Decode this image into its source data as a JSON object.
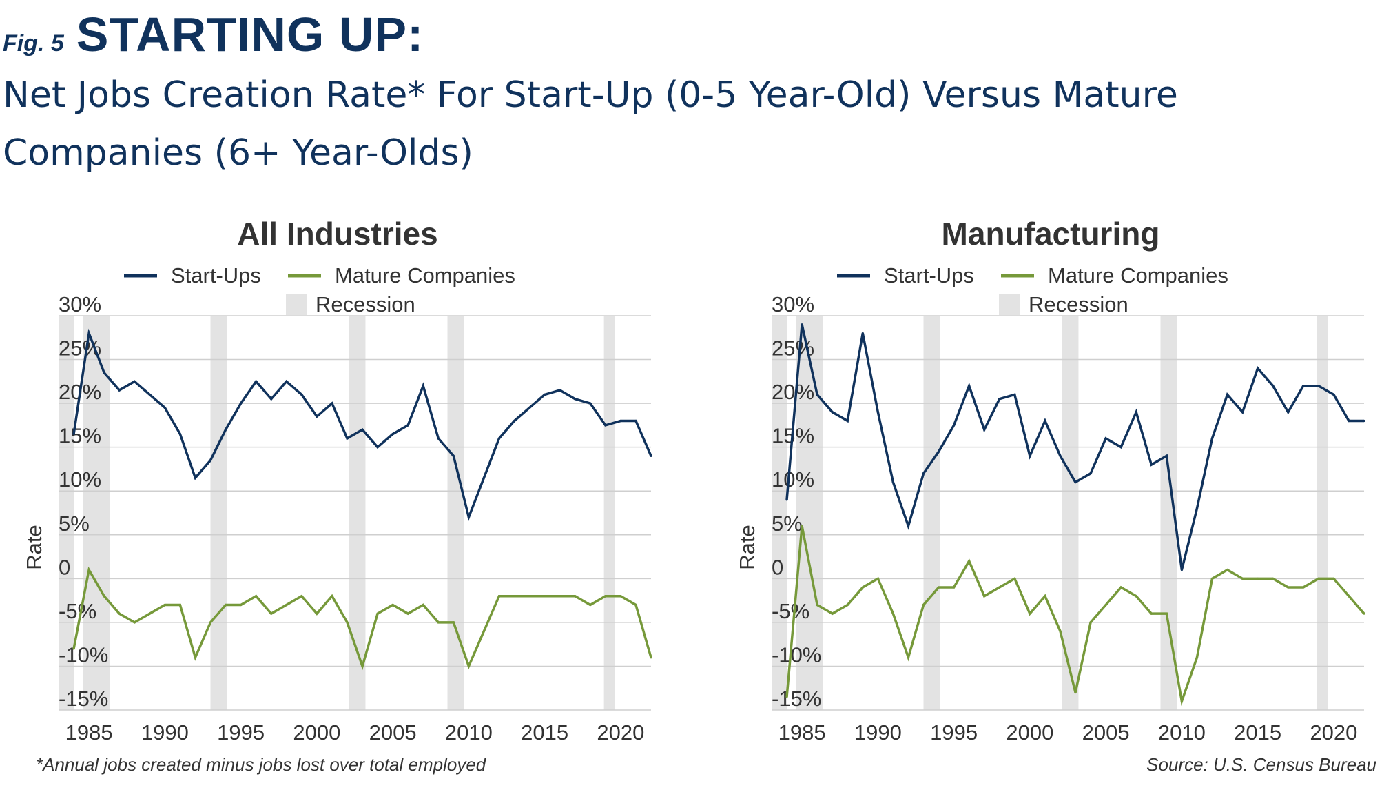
{
  "figure": {
    "label": "Fig. 5",
    "title": "STARTING UP:",
    "subtitle": "Net Jobs Creation Rate* For Start-Up (0-5 Year-Old) Versus Mature Companies (6+ Year-Olds)"
  },
  "footnote": "*Annual jobs created minus jobs lost over total employed",
  "source": "Source:  U.S. Census Bureau",
  "colors": {
    "startups": "#10325c",
    "mature": "#76993a",
    "recession": "#e3e3e3",
    "grid": "#cfcfcf",
    "text": "#333333"
  },
  "chart_data": [
    {
      "type": "line",
      "title": "All Industries",
      "ylabel": "Rate",
      "xlabel": "",
      "xlim": [
        1983,
        2022
      ],
      "ylim": [
        -15,
        30
      ],
      "yticks": [
        30,
        25,
        20,
        15,
        10,
        5,
        0,
        -5,
        -10,
        -15
      ],
      "ytick_labels": [
        "30%",
        "25%",
        "20%",
        "15%",
        "10%",
        "5%",
        "0",
        "-5%",
        "-10%",
        "-15%"
      ],
      "xticks": [
        1985,
        1990,
        1995,
        2000,
        2005,
        2010,
        2015,
        2020
      ],
      "xtick_labels": [
        "1985",
        "1990",
        "1995",
        "2000",
        "2005",
        "2010",
        "2015",
        "2020"
      ],
      "grid": true,
      "legend_labels": [
        "Start-Ups",
        "Mature Companies",
        "Recession"
      ],
      "recessions": [
        [
          1983,
          1984
        ],
        [
          1984.6,
          1986.4
        ],
        [
          1993,
          1994.1
        ],
        [
          2002.1,
          2003.2
        ],
        [
          2008.6,
          2009.7
        ],
        [
          2018.9,
          2019.6
        ]
      ],
      "x": [
        1984,
        1985,
        1986,
        1987,
        1988,
        1989,
        1990,
        1991,
        1992,
        1993,
        1994,
        1995,
        1996,
        1997,
        1998,
        1999,
        2000,
        2001,
        2002,
        2003,
        2004,
        2005,
        2006,
        2007,
        2008,
        2009,
        2010,
        2011,
        2012,
        2013,
        2014,
        2015,
        2016,
        2017,
        2018,
        2019,
        2020,
        2021,
        2022
      ],
      "series": [
        {
          "name": "Start-Ups",
          "values": [
            16.5,
            28,
            23.5,
            21.5,
            22.5,
            21,
            19.5,
            16.5,
            11.5,
            13.5,
            17,
            20,
            22.5,
            20.5,
            22.5,
            21,
            18.5,
            20,
            16,
            17,
            15,
            16.5,
            17.5,
            22,
            16,
            14,
            7,
            11.5,
            16,
            18,
            19.5,
            21,
            21.5,
            20.5,
            20,
            17.5,
            18,
            18,
            14
          ]
        },
        {
          "name": "Mature Companies",
          "values": [
            -8,
            1,
            -2,
            -4,
            -5,
            -4,
            -3,
            -3,
            -9,
            -5,
            -3,
            -3,
            -2,
            -4,
            -3,
            -2,
            -4,
            -2,
            -5,
            -10,
            -4,
            -3,
            -4,
            -3,
            -5,
            -5,
            -10,
            -6,
            -2,
            -2,
            -2,
            -2,
            -2,
            -2,
            -3,
            -2,
            -2,
            -3,
            -9
          ]
        }
      ]
    },
    {
      "type": "line",
      "title": "Manufacturing",
      "ylabel": "Rate",
      "xlabel": "",
      "xlim": [
        1983,
        2022
      ],
      "ylim": [
        -15,
        30
      ],
      "yticks": [
        30,
        25,
        20,
        15,
        10,
        5,
        0,
        -5,
        -10,
        -15
      ],
      "ytick_labels": [
        "30%",
        "25%",
        "20%",
        "15%",
        "10%",
        "5%",
        "0",
        "-5%",
        "-10%",
        "-15%"
      ],
      "xticks": [
        1985,
        1990,
        1995,
        2000,
        2005,
        2010,
        2015,
        2020
      ],
      "xtick_labels": [
        "1985",
        "1990",
        "1995",
        "2000",
        "2005",
        "2010",
        "2015",
        "2020"
      ],
      "grid": true,
      "legend_labels": [
        "Start-Ups",
        "Mature Companies",
        "Recession"
      ],
      "recessions": [
        [
          1983,
          1984
        ],
        [
          1984.6,
          1986.4
        ],
        [
          1993,
          1994.1
        ],
        [
          2002.1,
          2003.2
        ],
        [
          2008.6,
          2009.7
        ],
        [
          2018.9,
          2019.6
        ]
      ],
      "x": [
        1984,
        1985,
        1986,
        1987,
        1988,
        1989,
        1990,
        1991,
        1992,
        1993,
        1994,
        1995,
        1996,
        1997,
        1998,
        1999,
        2000,
        2001,
        2002,
        2003,
        2004,
        2005,
        2006,
        2007,
        2008,
        2009,
        2010,
        2011,
        2012,
        2013,
        2014,
        2015,
        2016,
        2017,
        2018,
        2019,
        2020,
        2021,
        2022
      ],
      "series": [
        {
          "name": "Start-Ups",
          "values": [
            9,
            29,
            21,
            19,
            18,
            28,
            19,
            11,
            6,
            12,
            14.5,
            17.5,
            22,
            17,
            20.5,
            21,
            14,
            18,
            14,
            11,
            12,
            16,
            15,
            19,
            13,
            14,
            1,
            8,
            16,
            21,
            19,
            24,
            22,
            19,
            22,
            22,
            21,
            18,
            18
          ]
        },
        {
          "name": "Mature Companies",
          "values": [
            -13.5,
            6,
            -3,
            -4,
            -3,
            -1,
            0,
            -4,
            -9,
            -3,
            -1,
            -1,
            2,
            -2,
            -1,
            0,
            -4,
            -2,
            -6,
            -13,
            -5,
            -3,
            -1,
            -2,
            -4,
            -4,
            -14,
            -9,
            0,
            1,
            0,
            0,
            0,
            -1,
            -1,
            0,
            0,
            -2,
            -4
          ]
        }
      ]
    }
  ]
}
